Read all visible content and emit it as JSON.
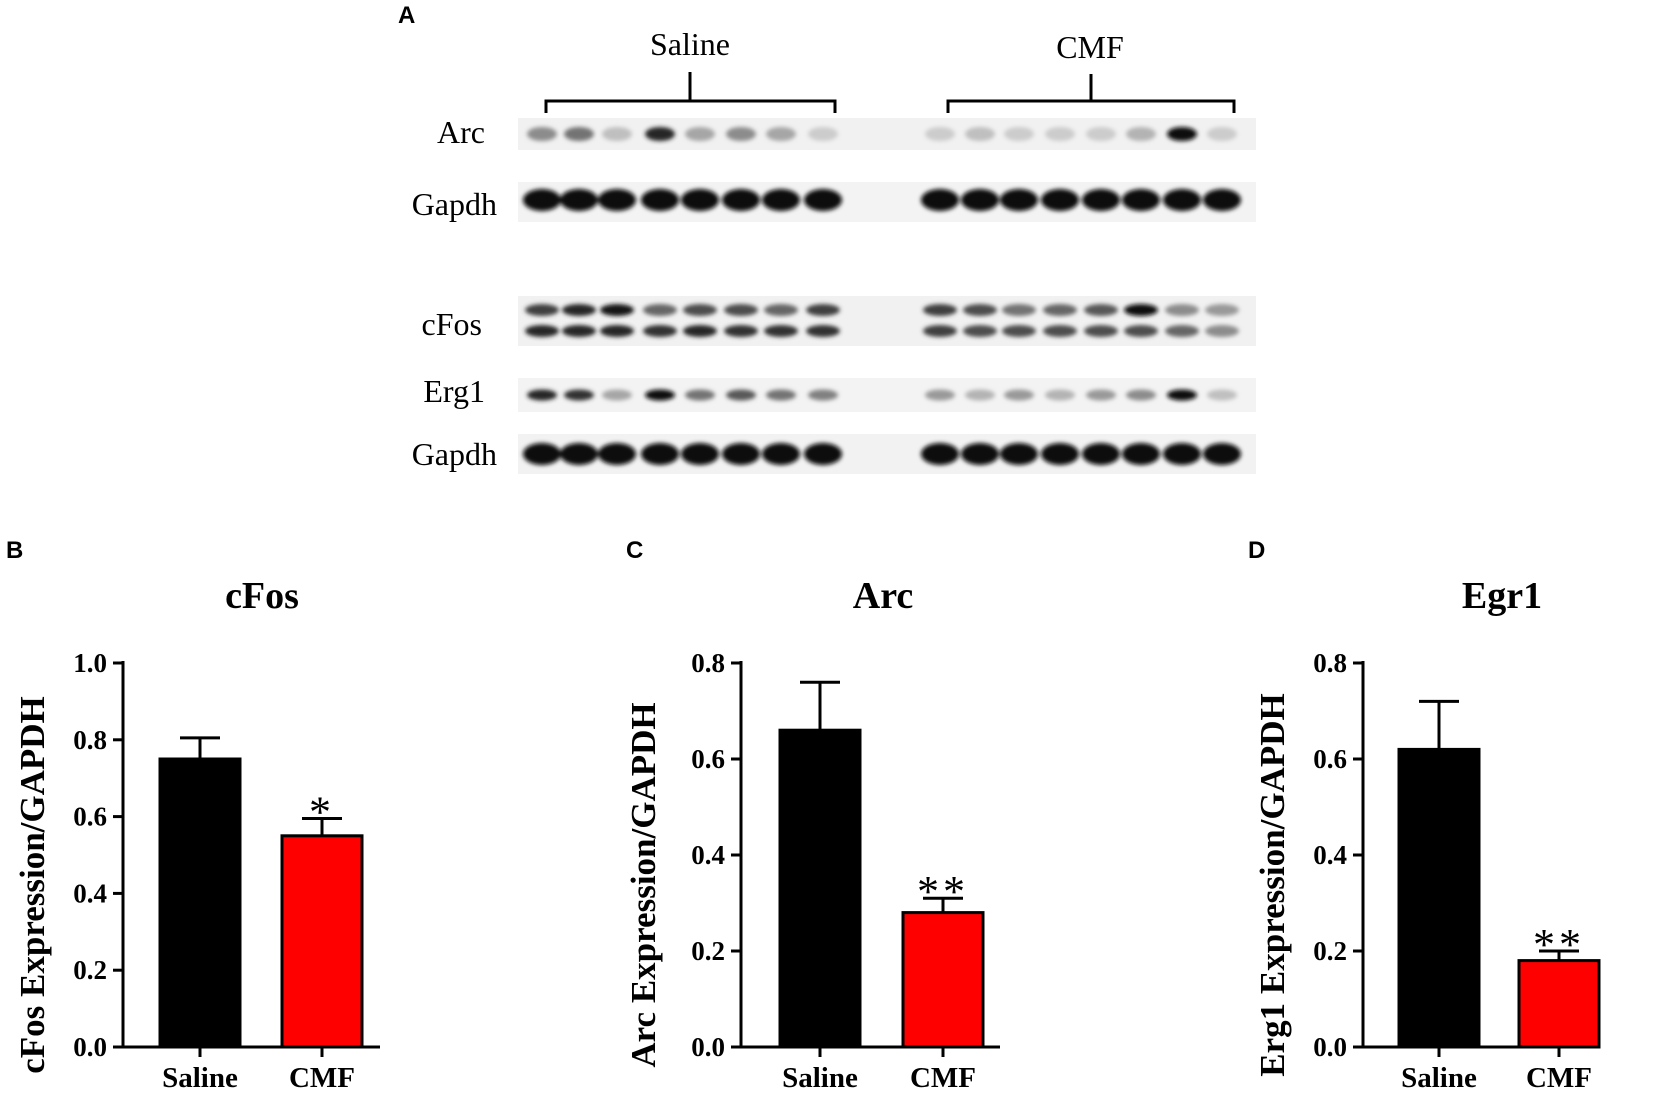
{
  "panels": {
    "a": "A",
    "b": "B",
    "c": "C",
    "d": "D"
  },
  "blot": {
    "groups": [
      "Saline",
      "CMF"
    ],
    "rows": [
      "Arc",
      "Gapdh",
      "cFos",
      "Erg1",
      "Gapdh"
    ]
  },
  "colors": {
    "saline": "#000000",
    "cmf": "#ff0000"
  },
  "chart_data": [
    {
      "type": "bar",
      "title": "cFos",
      "ylabel": "cFos Expression/GAPDH",
      "categories": [
        "Saline",
        "CMF"
      ],
      "values": [
        0.75,
        0.55
      ],
      "errors": [
        0.055,
        0.045
      ],
      "annotations": [
        "",
        "*"
      ],
      "ylim": [
        0,
        1.0
      ],
      "yticks": [
        "0.0",
        "0.2",
        "0.4",
        "0.6",
        "0.8",
        "1.0"
      ],
      "grid": false
    },
    {
      "type": "bar",
      "title": "Arc",
      "ylabel": "Arc Expression/GAPDH",
      "categories": [
        "Saline",
        "CMF"
      ],
      "values": [
        0.66,
        0.28
      ],
      "errors": [
        0.1,
        0.03
      ],
      "annotations": [
        "",
        "**"
      ],
      "ylim": [
        0,
        0.8
      ],
      "yticks": [
        "0.0",
        "0.2",
        "0.4",
        "0.6",
        "0.8"
      ],
      "grid": false
    },
    {
      "type": "bar",
      "title": "Egr1",
      "ylabel": "Erg1 Expression/GAPDH",
      "categories": [
        "Saline",
        "CMF"
      ],
      "values": [
        0.62,
        0.18
      ],
      "errors": [
        0.1,
        0.02
      ],
      "annotations": [
        "",
        "**"
      ],
      "ylim": [
        0,
        0.8
      ],
      "yticks": [
        "0.0",
        "0.2",
        "0.4",
        "0.6",
        "0.8"
      ],
      "grid": false
    }
  ]
}
